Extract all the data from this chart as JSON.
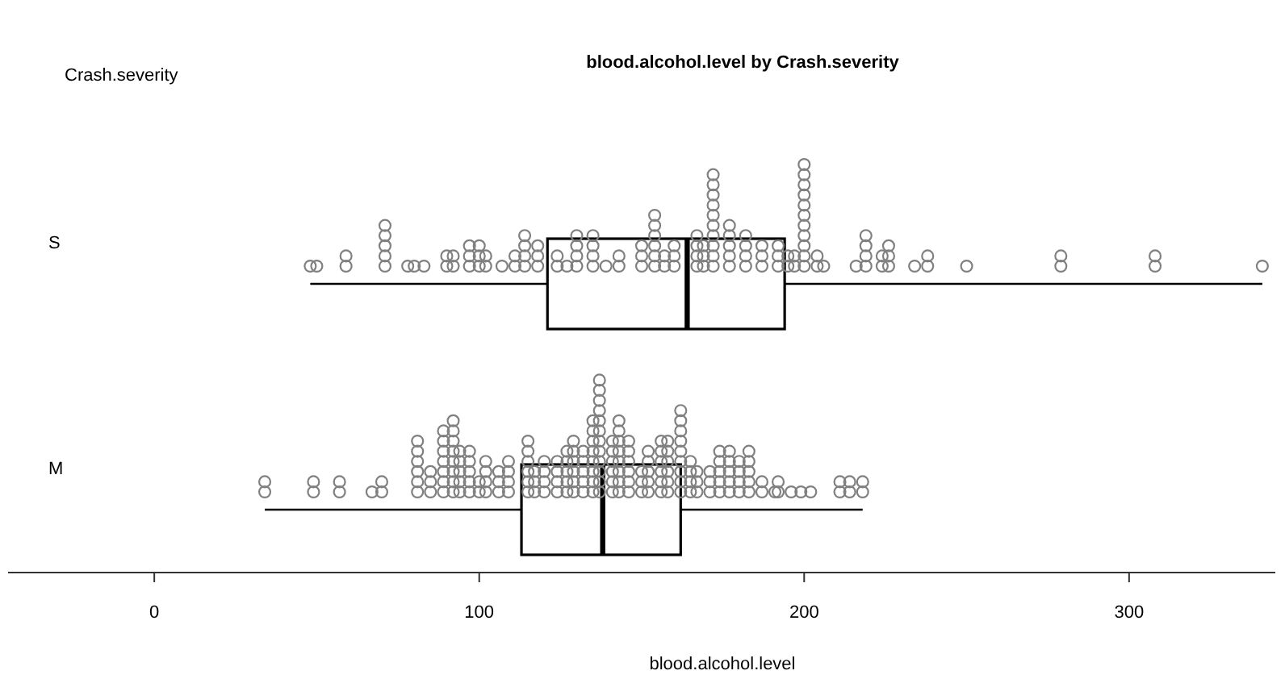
{
  "chart_data": {
    "type": "box",
    "title": "blood.alcohol.level by Crash.severity",
    "xlabel": "blood.alcohol.level",
    "ylabel": "Crash.severity",
    "orientation": "horizontal",
    "categories": [
      "S",
      "M"
    ],
    "boxes": [
      {
        "low": 48,
        "q1": 121,
        "median": 164,
        "q3": 194,
        "high": 341
      },
      {
        "low": 34,
        "q1": 113,
        "median": 138,
        "q3": 162,
        "high": 218
      }
    ],
    "xlim": [
      -45,
      345
    ],
    "xticks": [
      0,
      100,
      200,
      300
    ],
    "marker": "circle",
    "grid": false,
    "series": [
      {
        "type": "scatter",
        "color": "#808080",
        "x": [
          "S",
          "S",
          "S",
          "S",
          "S",
          "S",
          "S",
          "S",
          "S",
          "S",
          "S",
          "S",
          "S",
          "S",
          "S",
          "S",
          "S",
          "S",
          "S",
          "S",
          "S",
          "S",
          "S",
          "S",
          "S",
          "S",
          "S",
          "S",
          "S",
          "S",
          "S",
          "S",
          "S",
          "S",
          "S",
          "S",
          "S",
          "S",
          "S",
          "S",
          "S",
          "S",
          "S",
          "S",
          "S",
          "S",
          "S",
          "S",
          "S",
          "S",
          "S",
          "S",
          "S",
          "S",
          "S",
          "S",
          "S",
          "S",
          "S",
          "S",
          "S",
          "S",
          "S",
          "S",
          "S",
          "S",
          "S",
          "S",
          "S",
          "S",
          "S",
          "S",
          "S",
          "S",
          "S",
          "S",
          "S",
          "S",
          "S",
          "S",
          "S",
          "S",
          "S",
          "S",
          "S",
          "S",
          "S",
          "S",
          "S",
          "S",
          "S",
          "S",
          "S",
          "S",
          "S",
          "S",
          "S",
          "S",
          "S",
          "S",
          "S",
          "S",
          "S",
          "S",
          "S",
          "S",
          "S",
          "S",
          "S",
          "S",
          "S",
          "S",
          "S",
          "S",
          "S",
          "S",
          "S",
          "S",
          "S",
          "S",
          "S",
          "S",
          "S",
          "S",
          "S",
          "S",
          "S",
          "S",
          "S",
          "S",
          "S"
        ],
        "values": [
          48,
          50,
          59,
          59,
          71,
          71,
          71,
          71,
          71,
          78,
          80,
          83,
          90,
          90,
          92,
          92,
          97,
          97,
          97,
          100,
          100,
          100,
          102,
          102,
          107,
          111,
          111,
          114,
          114,
          114,
          114,
          118,
          118,
          118,
          124,
          124,
          127,
          130,
          130,
          130,
          130,
          135,
          135,
          135,
          135,
          139,
          143,
          143,
          150,
          150,
          150,
          154,
          154,
          154,
          154,
          154,
          154,
          157,
          157,
          160,
          160,
          160,
          167,
          167,
          167,
          167,
          169,
          169,
          169,
          172,
          172,
          172,
          172,
          172,
          172,
          172,
          172,
          172,
          172,
          177,
          177,
          177,
          177,
          177,
          182,
          182,
          182,
          182,
          187,
          187,
          187,
          192,
          192,
          192,
          195,
          195,
          197,
          197,
          200,
          200,
          200,
          200,
          200,
          200,
          200,
          200,
          200,
          200,
          200,
          204,
          204,
          206,
          216,
          219,
          219,
          219,
          219,
          224,
          224,
          226,
          226,
          226,
          234,
          238,
          238,
          250,
          279,
          279,
          308,
          308,
          341
        ]
      },
      {
        "type": "scatter",
        "color": "#808080",
        "x": [
          "M",
          "M",
          "M",
          "M",
          "M",
          "M",
          "M",
          "M",
          "M",
          "M",
          "M",
          "M",
          "M",
          "M",
          "M",
          "M",
          "M",
          "M",
          "M",
          "M",
          "M",
          "M",
          "M",
          "M",
          "M",
          "M",
          "M",
          "M",
          "M",
          "M",
          "M",
          "M",
          "M",
          "M",
          "M",
          "M",
          "M",
          "M",
          "M",
          "M",
          "M",
          "M",
          "M",
          "M",
          "M",
          "M",
          "M",
          "M",
          "M",
          "M",
          "M",
          "M",
          "M",
          "M",
          "M",
          "M",
          "M",
          "M",
          "M",
          "M",
          "M",
          "M",
          "M",
          "M",
          "M",
          "M",
          "M",
          "M",
          "M",
          "M",
          "M",
          "M",
          "M",
          "M",
          "M",
          "M",
          "M",
          "M",
          "M",
          "M",
          "M",
          "M",
          "M",
          "M",
          "M",
          "M",
          "M",
          "M",
          "M",
          "M",
          "M",
          "M",
          "M",
          "M",
          "M",
          "M",
          "M",
          "M",
          "M",
          "M",
          "M",
          "M",
          "M",
          "M",
          "M",
          "M",
          "M",
          "M",
          "M",
          "M",
          "M",
          "M",
          "M",
          "M",
          "M",
          "M",
          "M",
          "M",
          "M",
          "M",
          "M",
          "M",
          "M",
          "M",
          "M",
          "M",
          "M",
          "M",
          "M",
          "M",
          "M",
          "M",
          "M",
          "M",
          "M",
          "M",
          "M",
          "M",
          "M",
          "M",
          "M",
          "M",
          "M",
          "M",
          "M",
          "M",
          "M",
          "M",
          "M",
          "M",
          "M",
          "M",
          "M",
          "M",
          "M",
          "M",
          "M",
          "M",
          "M",
          "M",
          "M",
          "M",
          "M",
          "M",
          "M",
          "M",
          "M",
          "M",
          "M",
          "M",
          "M",
          "M",
          "M",
          "M",
          "M",
          "M",
          "M",
          "M",
          "M",
          "M",
          "M",
          "M",
          "M",
          "M",
          "M",
          "M",
          "M",
          "M",
          "M",
          "M",
          "M",
          "M",
          "M",
          "M",
          "M",
          "M",
          "M",
          "M",
          "M",
          "M",
          "M"
        ],
        "values": [
          34,
          34,
          49,
          49,
          57,
          57,
          67,
          70,
          70,
          81,
          81,
          81,
          81,
          81,
          81,
          85,
          85,
          85,
          89,
          89,
          89,
          89,
          89,
          89,
          89,
          92,
          92,
          92,
          92,
          92,
          92,
          92,
          92,
          94,
          94,
          94,
          94,
          94,
          97,
          97,
          97,
          97,
          97,
          100,
          100,
          102,
          102,
          102,
          102,
          106,
          106,
          106,
          109,
          109,
          109,
          109,
          115,
          115,
          115,
          115,
          115,
          115,
          117,
          117,
          117,
          120,
          120,
          120,
          120,
          124,
          124,
          124,
          124,
          127,
          127,
          127,
          127,
          127,
          129,
          129,
          129,
          129,
          129,
          129,
          132,
          132,
          132,
          132,
          132,
          135,
          135,
          135,
          135,
          135,
          135,
          135,
          135,
          137,
          137,
          137,
          137,
          137,
          137,
          137,
          137,
          137,
          137,
          137,
          137,
          141,
          141,
          141,
          141,
          141,
          141,
          143,
          143,
          143,
          143,
          143,
          143,
          143,
          143,
          146,
          146,
          146,
          146,
          146,
          146,
          150,
          150,
          150,
          152,
          152,
          152,
          152,
          152,
          156,
          156,
          156,
          156,
          156,
          156,
          158,
          158,
          158,
          158,
          158,
          158,
          162,
          162,
          162,
          162,
          162,
          162,
          162,
          162,
          162,
          165,
          165,
          165,
          165,
          167,
          167,
          167,
          171,
          171,
          171,
          174,
          174,
          174,
          174,
          174,
          177,
          177,
          177,
          177,
          177,
          180,
          180,
          180,
          180,
          183,
          183,
          183,
          183,
          183,
          187,
          187,
          191,
          192,
          192,
          196,
          199,
          202,
          211,
          211,
          214,
          214,
          218,
          218
        ]
      }
    ]
  }
}
